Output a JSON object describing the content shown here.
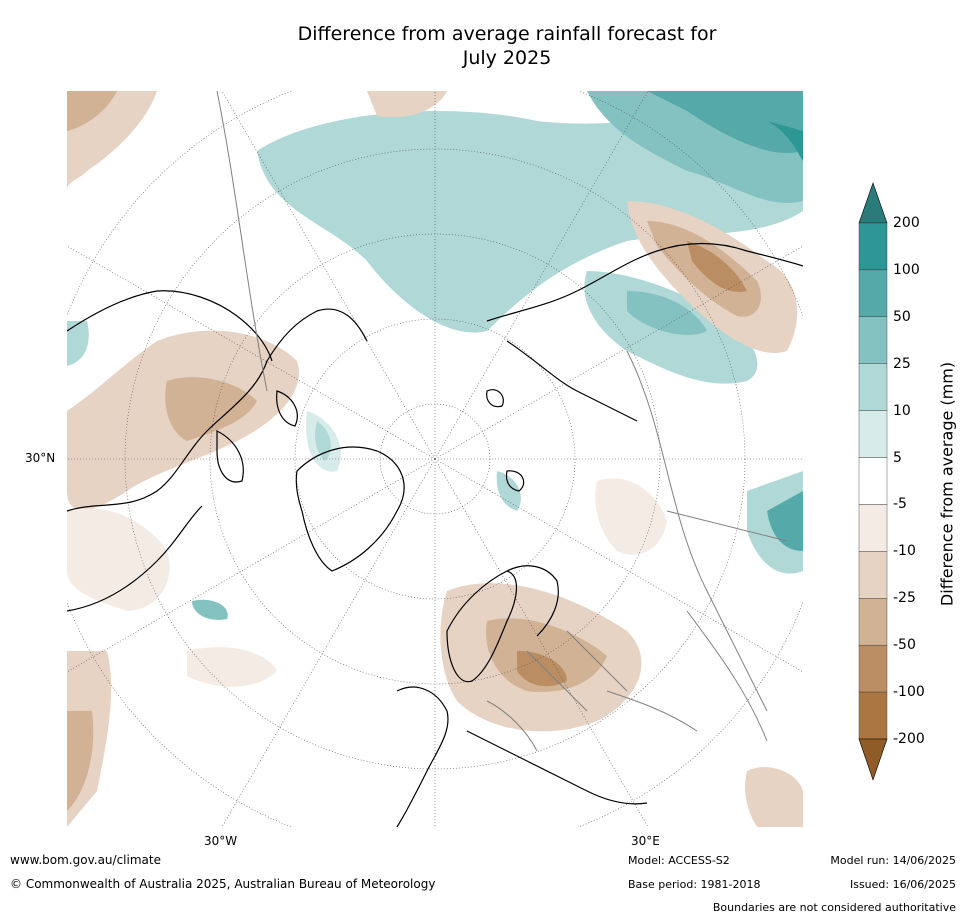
{
  "title_line1": "Difference from average rainfall forecast for",
  "title_line2": "July 2025",
  "map": {
    "projection": "north polar stereographic",
    "lat_label": "30°N",
    "lon_labels": [
      "30°W",
      "30°E"
    ],
    "coastline_color": "#000000",
    "border_color": "#808080"
  },
  "colorbar": {
    "label": "Difference from average (mm)",
    "ticks": [
      "200",
      "100",
      "50",
      "25",
      "10",
      "5",
      "-5",
      "-10",
      "-25",
      "-50",
      "-100",
      "-200"
    ],
    "colors_top_to_bottom": [
      "#2b7b7a",
      "#2e9694",
      "#55a9a8",
      "#83c2c1",
      "#afd8d7",
      "#d7ebea",
      "#ffffff",
      "#f4ebe5",
      "#e6d3c4",
      "#d1b295",
      "#bb8d63",
      "#ab7641",
      "#8f5b27"
    ]
  },
  "footer": {
    "website": "www.bom.gov.au/climate",
    "copyright": "© Commonwealth of Australia 2025, Australian Bureau of Meteorology",
    "model": "Model: ACCESS-S2",
    "base_period": "Base period: 1981-2018",
    "model_run": "Model run: 14/06/2025",
    "issued": "Issued: 16/06/2025",
    "disclaimer": "Boundaries are not considered authoritative"
  }
}
